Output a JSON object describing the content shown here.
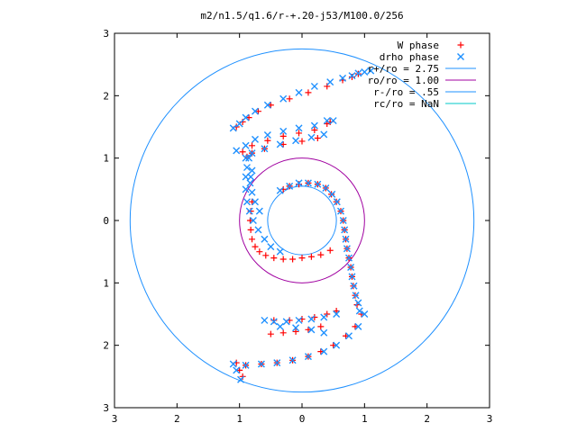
{
  "chart_data": {
    "type": "scatter",
    "title": "m2/n1.5/q1.6/r-+.20-j53/M100.0/256",
    "xlabel": "",
    "ylabel": "",
    "xlim": [
      -3,
      3
    ],
    "ylim": [
      -3,
      3
    ],
    "x_tick_labels": [
      "3",
      "2",
      "1",
      "0",
      "1",
      "2",
      "3"
    ],
    "y_tick_labels": [
      "3",
      "2",
      "1",
      "0",
      "1",
      "2",
      "3"
    ],
    "grid": false,
    "legend_position": "top-right",
    "series": [
      {
        "name": "W phase",
        "kind": "points",
        "marker": "plus",
        "color": "#ff0000",
        "x": [
          -1.05,
          -0.95,
          -0.85,
          -0.7,
          -0.5,
          -0.2,
          0.1,
          0.4,
          0.65,
          0.8,
          0.9,
          -0.95,
          -0.8,
          -0.55,
          -0.3,
          -0.05,
          0.2,
          0.4,
          -0.88,
          -0.8,
          -0.6,
          -0.3,
          0.0,
          0.25,
          0.45,
          -0.8,
          -0.82,
          -0.83,
          -0.82,
          -0.8,
          -0.75,
          -0.68,
          -0.58,
          -0.45,
          -0.3,
          -0.15,
          0.0,
          0.15,
          0.3,
          0.45,
          -0.3,
          -0.2,
          -0.05,
          0.1,
          0.25,
          0.38,
          0.47,
          0.55,
          0.62,
          0.66,
          0.68,
          0.7,
          0.72,
          0.75,
          0.78,
          0.8,
          0.82,
          0.85,
          0.88,
          0.55,
          0.4,
          0.2,
          0.0,
          -0.2,
          -0.45,
          0.3,
          0.1,
          -0.1,
          -0.3,
          -0.5,
          0.95,
          0.85,
          0.7,
          0.5,
          0.3,
          0.1,
          -0.15,
          -0.4,
          -0.65,
          -0.9,
          -1.05,
          -1.0,
          -0.95
        ],
        "y": [
          1.5,
          1.58,
          1.65,
          1.75,
          1.85,
          1.95,
          2.05,
          2.15,
          2.25,
          2.3,
          2.35,
          1.1,
          1.2,
          1.28,
          1.35,
          1.4,
          1.45,
          1.55,
          1.02,
          1.08,
          1.15,
          1.22,
          1.27,
          1.32,
          1.58,
          0.3,
          0.15,
          0.0,
          -0.15,
          -0.3,
          -0.42,
          -0.5,
          -0.56,
          -0.6,
          -0.62,
          -0.62,
          -0.6,
          -0.58,
          -0.55,
          -0.48,
          0.5,
          0.55,
          0.58,
          0.6,
          0.58,
          0.52,
          0.42,
          0.3,
          0.15,
          0.0,
          -0.15,
          -0.3,
          -0.45,
          -0.6,
          -0.75,
          -0.9,
          -1.05,
          -1.2,
          -1.35,
          -1.45,
          -1.5,
          -1.55,
          -1.58,
          -1.6,
          -1.6,
          -1.7,
          -1.75,
          -1.78,
          -1.8,
          -1.82,
          -1.5,
          -1.7,
          -1.85,
          -2.0,
          -2.1,
          -2.18,
          -2.24,
          -2.28,
          -2.3,
          -2.32,
          -2.28,
          -2.4,
          -2.5
        ]
      },
      {
        "name": "drho phase",
        "kind": "points",
        "marker": "cross",
        "color": "#1e90ff",
        "x": [
          -1.1,
          -1.0,
          -0.9,
          -0.75,
          -0.55,
          -0.3,
          -0.05,
          0.2,
          0.45,
          0.65,
          0.8,
          0.9,
          1.0,
          1.1,
          -1.05,
          -0.9,
          -0.75,
          -0.55,
          -0.3,
          -0.05,
          0.2,
          0.4,
          -0.9,
          -0.8,
          -0.6,
          -0.35,
          -0.1,
          0.15,
          0.35,
          0.5,
          -0.85,
          -0.88,
          -0.9,
          -0.9,
          -0.88,
          -0.84,
          -0.78,
          -0.7,
          -0.6,
          -0.5,
          -0.35,
          -0.8,
          -0.82,
          -0.83,
          -0.8,
          -0.75,
          -0.68,
          -0.35,
          -0.2,
          -0.05,
          0.1,
          0.25,
          0.38,
          0.48,
          0.56,
          0.62,
          0.66,
          0.68,
          0.7,
          0.72,
          0.75,
          0.78,
          0.8,
          0.83,
          0.86,
          0.9,
          0.92,
          0.55,
          0.35,
          0.15,
          -0.05,
          -0.25,
          -0.45,
          -0.6,
          0.35,
          0.15,
          -0.1,
          -0.35,
          1.0,
          0.9,
          0.75,
          0.55,
          0.35,
          0.1,
          -0.15,
          -0.4,
          -0.65,
          -0.9,
          -1.1,
          -1.05,
          -0.98
        ],
        "y": [
          1.48,
          1.55,
          1.65,
          1.75,
          1.85,
          1.95,
          2.05,
          2.15,
          2.22,
          2.28,
          2.32,
          2.36,
          2.38,
          2.4,
          1.12,
          1.2,
          1.3,
          1.37,
          1.43,
          1.48,
          1.52,
          1.6,
          1.0,
          1.08,
          1.15,
          1.22,
          1.28,
          1.33,
          1.38,
          1.6,
          1.0,
          0.85,
          0.7,
          0.5,
          0.3,
          0.15,
          0.0,
          -0.15,
          -0.3,
          -0.42,
          -0.5,
          0.8,
          0.7,
          0.6,
          0.45,
          0.3,
          0.15,
          0.48,
          0.55,
          0.6,
          0.6,
          0.58,
          0.52,
          0.42,
          0.3,
          0.15,
          0.0,
          -0.15,
          -0.3,
          -0.45,
          -0.6,
          -0.75,
          -0.9,
          -1.05,
          -1.2,
          -1.32,
          -1.45,
          -1.5,
          -1.55,
          -1.58,
          -1.6,
          -1.62,
          -1.62,
          -1.6,
          -1.8,
          -1.75,
          -1.72,
          -1.7,
          -1.5,
          -1.7,
          -1.85,
          -2.0,
          -2.1,
          -2.18,
          -2.24,
          -2.28,
          -2.3,
          -2.32,
          -2.3,
          -2.4,
          -2.55
        ]
      },
      {
        "name": "r+/ro = 2.75",
        "kind": "circle",
        "radius": 2.75,
        "color": "#1e90ff"
      },
      {
        "name": "ro/ro = 1.00",
        "kind": "circle",
        "radius": 1.0,
        "color": "#a000a0"
      },
      {
        "name": "r-/ro = .55",
        "kind": "circle",
        "radius": 0.55,
        "color": "#1e90ff"
      },
      {
        "name": "rc/ro = NaN",
        "kind": "circle",
        "radius": null,
        "color": "#00c8c8"
      }
    ]
  }
}
